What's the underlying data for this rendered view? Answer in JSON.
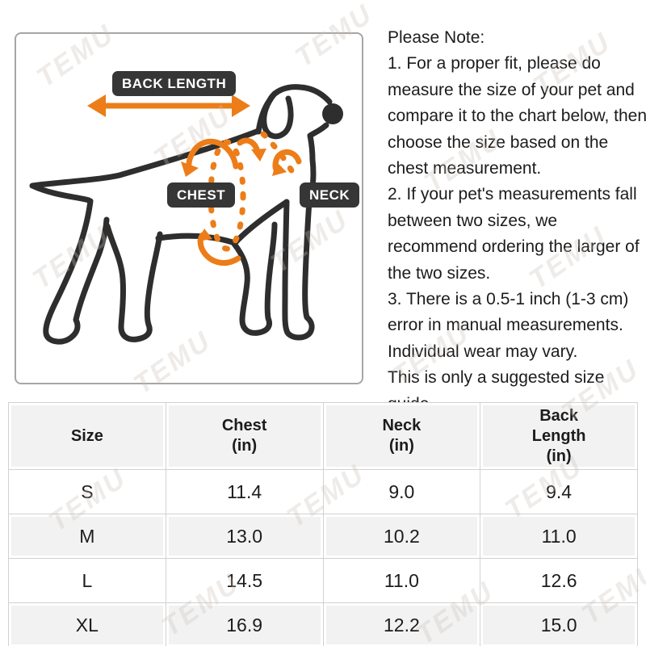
{
  "watermark": {
    "text": "TEMU"
  },
  "colors": {
    "orange": "#EC7D18",
    "ink": "#2E2E2E",
    "pill_bg": "#363636",
    "pill_text": "#FFFFFF",
    "text": "#1C1C1C",
    "table_border": "#D2D2D2",
    "table_fill": "#F2F2F2",
    "box_border": "#A6A6A6",
    "watermark_color": "#C9BFB7"
  },
  "diagram": {
    "labels": {
      "back_length": "BACK LENGTH",
      "chest": "CHEST",
      "neck": "NECK"
    }
  },
  "notes": {
    "title": "Please Note:",
    "items": [
      "1. For a proper fit, please do measure the size of your pet and compare it to the chart below, then choose the size based on the chest measurement.",
      "2. If your pet's measurements fall between two sizes, we recommend ordering the larger of the two sizes.",
      "3. There is a 0.5-1 inch (1-3 cm) error in manual measurements. Individual wear may vary.",
      "This is only a suggested size guide."
    ]
  },
  "size_table": {
    "headers": [
      "Size",
      "Chest\n(in)",
      "Neck\n(in)",
      "Back\nLength\n(in)"
    ],
    "rows": [
      {
        "size": "S",
        "chest": "11.4",
        "neck": "9.0",
        "back_length": "9.4"
      },
      {
        "size": "M",
        "chest": "13.0",
        "neck": "10.2",
        "back_length": "11.0"
      },
      {
        "size": "L",
        "chest": "14.5",
        "neck": "11.0",
        "back_length": "12.6"
      },
      {
        "size": "XL",
        "chest": "16.9",
        "neck": "12.2",
        "back_length": "15.0"
      }
    ]
  }
}
